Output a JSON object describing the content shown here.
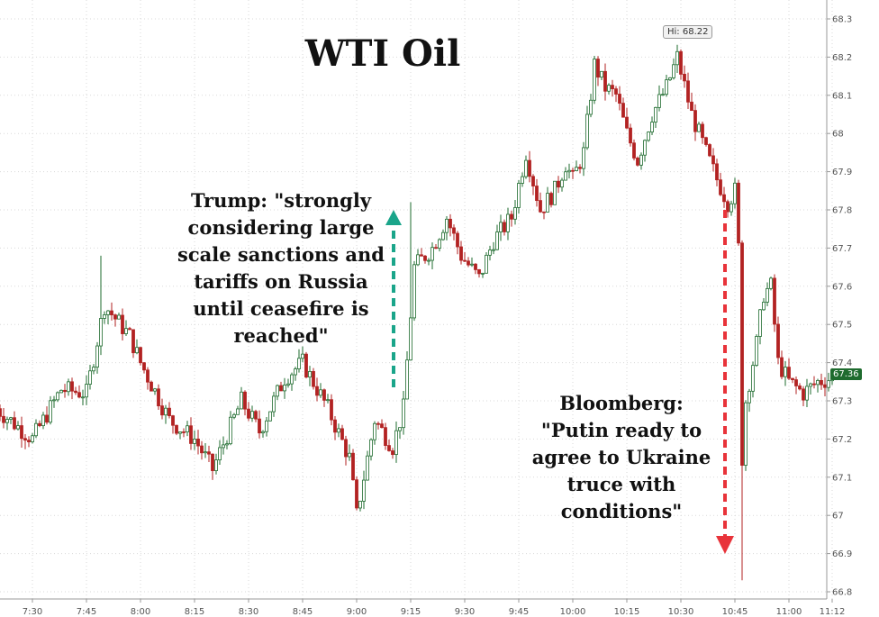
{
  "chart_data": {
    "type": "candlestick",
    "title": "WTI Oil",
    "x_ticks": [
      "7:30",
      "7:45",
      "8:00",
      "8:15",
      "8:30",
      "8:45",
      "9:00",
      "9:15",
      "9:30",
      "9:45",
      "10:00",
      "10:15",
      "10:30",
      "10:45",
      "11:00",
      "11:12"
    ],
    "y_ticks": [
      "66.8",
      "66.9",
      "67",
      "67.1",
      "67.2",
      "67.3",
      "67.4",
      "67.5",
      "67.6",
      "67.7",
      "67.8",
      "67.9",
      "68",
      "68.1",
      "68.2",
      "68.3"
    ],
    "ylim": [
      66.8,
      68.3
    ],
    "grid": true,
    "high_label": "Hi: 68.22",
    "last_price_label": "67.36",
    "approx_close_path": [
      {
        "time": "7:20",
        "price": 67.28
      },
      {
        "time": "7:30",
        "price": 67.2
      },
      {
        "time": "7:38",
        "price": 67.33
      },
      {
        "time": "7:45",
        "price": 67.32
      },
      {
        "time": "7:50",
        "price": 67.55
      },
      {
        "time": "7:57",
        "price": 67.47
      },
      {
        "time": "8:00",
        "price": 67.4
      },
      {
        "time": "8:08",
        "price": 67.25
      },
      {
        "time": "8:15",
        "price": 67.2
      },
      {
        "time": "8:20",
        "price": 67.12
      },
      {
        "time": "8:28",
        "price": 67.3
      },
      {
        "time": "8:33",
        "price": 67.22
      },
      {
        "time": "8:40",
        "price": 67.36
      },
      {
        "time": "8:45",
        "price": 67.4
      },
      {
        "time": "8:52",
        "price": 67.28
      },
      {
        "time": "8:58",
        "price": 67.15
      },
      {
        "time": "9:00",
        "price": 67.0
      },
      {
        "time": "9:05",
        "price": 67.25
      },
      {
        "time": "9:10",
        "price": 67.18
      },
      {
        "time": "9:13",
        "price": 67.28
      },
      {
        "time": "9:16",
        "price": 67.65
      },
      {
        "time": "9:21",
        "price": 67.7
      },
      {
        "time": "9:25",
        "price": 67.78
      },
      {
        "time": "9:29",
        "price": 67.68
      },
      {
        "time": "9:34",
        "price": 67.62
      },
      {
        "time": "9:38",
        "price": 67.72
      },
      {
        "time": "9:43",
        "price": 67.78
      },
      {
        "time": "9:47",
        "price": 67.95
      },
      {
        "time": "9:51",
        "price": 67.8
      },
      {
        "time": "9:55",
        "price": 67.85
      },
      {
        "time": "9:58",
        "price": 67.92
      },
      {
        "time": "10:00",
        "price": 67.88
      },
      {
        "time": "10:03",
        "price": 67.95
      },
      {
        "time": "10:06",
        "price": 68.18
      },
      {
        "time": "10:09",
        "price": 68.12
      },
      {
        "time": "10:12",
        "price": 68.1
      },
      {
        "time": "10:15",
        "price": 68.0
      },
      {
        "time": "10:18",
        "price": 67.93
      },
      {
        "time": "10:22",
        "price": 68.05
      },
      {
        "time": "10:26",
        "price": 68.12
      },
      {
        "time": "10:29",
        "price": 68.2
      },
      {
        "time": "10:33",
        "price": 68.05
      },
      {
        "time": "10:37",
        "price": 67.95
      },
      {
        "time": "10:40",
        "price": 67.88
      },
      {
        "time": "10:43",
        "price": 67.82
      },
      {
        "time": "10:45",
        "price": 67.85
      },
      {
        "time": "10:46",
        "price": 67.7
      },
      {
        "time": "10:47",
        "price": 67.15
      },
      {
        "time": "10:48",
        "price": 67.3
      },
      {
        "time": "10:51",
        "price": 67.45
      },
      {
        "time": "10:53",
        "price": 67.58
      },
      {
        "time": "10:55",
        "price": 67.6
      },
      {
        "time": "10:57",
        "price": 67.4
      },
      {
        "time": "11:00",
        "price": 67.35
      },
      {
        "time": "11:04",
        "price": 67.32
      },
      {
        "time": "11:08",
        "price": 67.35
      },
      {
        "time": "11:12",
        "price": 67.36
      }
    ],
    "annotations": [
      {
        "lines": [
          "Trump: \"strongly",
          "considering large",
          "scale sanctions and",
          "tariffs on Russia",
          "until ceasefire is",
          "reached\""
        ],
        "arrow": "up",
        "arrow_color": "#1aa58a"
      },
      {
        "lines": [
          "Bloomberg:",
          "\"Putin ready to",
          "agree to Ukraine",
          "truce with",
          "conditions\""
        ],
        "arrow": "down",
        "arrow_color": "#e8333a"
      }
    ],
    "colors": {
      "up": "#1e6b2e",
      "down": "#b22222",
      "grid": "#d9d9d9"
    }
  }
}
